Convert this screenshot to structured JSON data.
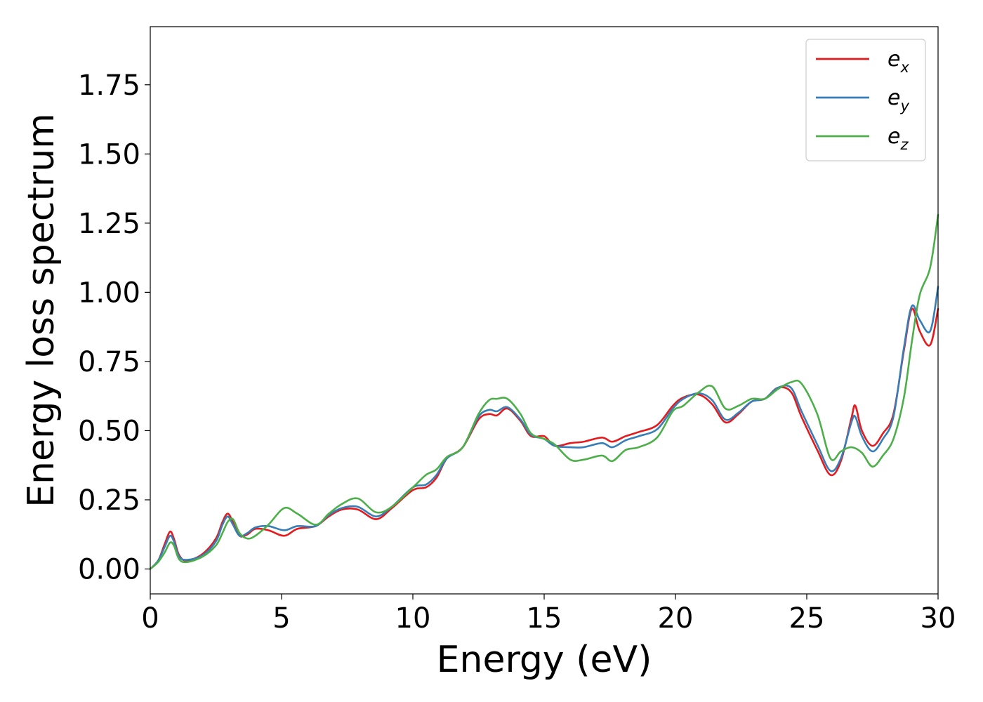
{
  "chart_data": {
    "type": "line",
    "xlabel": "Energy (eV)",
    "ylabel": "Energy loss spectrum",
    "xlim": [
      0,
      30
    ],
    "ylim": [
      -0.09,
      1.96
    ],
    "x_ticks": [
      "0",
      "5",
      "10",
      "15",
      "20",
      "25",
      "30"
    ],
    "y_ticks": [
      "0.00",
      "0.25",
      "0.50",
      "0.75",
      "1.00",
      "1.25",
      "1.50",
      "1.75"
    ],
    "grid": false,
    "legend_position": "top-right",
    "series": [
      {
        "name": "e",
        "subscript": "x",
        "color": "#e41a1c",
        "points": [
          [
            0,
            0
          ],
          [
            0.3,
            0.03
          ],
          [
            0.55,
            0.09
          ],
          [
            0.75,
            0.135
          ],
          [
            0.9,
            0.11
          ],
          [
            1.1,
            0.05
          ],
          [
            1.4,
            0.03
          ],
          [
            2,
            0.055
          ],
          [
            2.5,
            0.11
          ],
          [
            2.75,
            0.17
          ],
          [
            2.95,
            0.2
          ],
          [
            3.15,
            0.17
          ],
          [
            3.4,
            0.12
          ],
          [
            3.7,
            0.125
          ],
          [
            4,
            0.145
          ],
          [
            4.5,
            0.14
          ],
          [
            5.1,
            0.12
          ],
          [
            5.6,
            0.145
          ],
          [
            6.3,
            0.155
          ],
          [
            6.8,
            0.19
          ],
          [
            7.3,
            0.215
          ],
          [
            7.9,
            0.215
          ],
          [
            8.6,
            0.18
          ],
          [
            9.2,
            0.22
          ],
          [
            10,
            0.285
          ],
          [
            10.5,
            0.295
          ],
          [
            10.9,
            0.33
          ],
          [
            11.3,
            0.4
          ],
          [
            11.9,
            0.44
          ],
          [
            12.5,
            0.54
          ],
          [
            12.9,
            0.56
          ],
          [
            13.2,
            0.555
          ],
          [
            13.6,
            0.58
          ],
          [
            14.1,
            0.535
          ],
          [
            14.5,
            0.48
          ],
          [
            15,
            0.48
          ],
          [
            15.4,
            0.445
          ],
          [
            16,
            0.455
          ],
          [
            16.5,
            0.46
          ],
          [
            17.2,
            0.475
          ],
          [
            17.6,
            0.46
          ],
          [
            18.1,
            0.48
          ],
          [
            18.6,
            0.495
          ],
          [
            19.3,
            0.52
          ],
          [
            19.9,
            0.59
          ],
          [
            20.3,
            0.62
          ],
          [
            20.9,
            0.63
          ],
          [
            21.4,
            0.595
          ],
          [
            21.9,
            0.53
          ],
          [
            22.4,
            0.56
          ],
          [
            22.9,
            0.605
          ],
          [
            23.4,
            0.615
          ],
          [
            23.9,
            0.655
          ],
          [
            24.4,
            0.64
          ],
          [
            24.8,
            0.55
          ],
          [
            25.4,
            0.43
          ],
          [
            25.9,
            0.34
          ],
          [
            26.3,
            0.39
          ],
          [
            26.7,
            0.545
          ],
          [
            26.85,
            0.59
          ],
          [
            27.1,
            0.5
          ],
          [
            27.5,
            0.445
          ],
          [
            27.9,
            0.49
          ],
          [
            28.3,
            0.56
          ],
          [
            28.7,
            0.79
          ],
          [
            29,
            0.94
          ],
          [
            29.3,
            0.86
          ],
          [
            29.7,
            0.81
          ],
          [
            30,
            0.94
          ]
        ]
      },
      {
        "name": "e",
        "subscript": "y",
        "color": "#377eb8",
        "points": [
          [
            0,
            0
          ],
          [
            0.3,
            0.03
          ],
          [
            0.55,
            0.08
          ],
          [
            0.75,
            0.12
          ],
          [
            0.9,
            0.1
          ],
          [
            1.1,
            0.045
          ],
          [
            1.4,
            0.033
          ],
          [
            2,
            0.05
          ],
          [
            2.5,
            0.1
          ],
          [
            2.75,
            0.16
          ],
          [
            2.95,
            0.19
          ],
          [
            3.15,
            0.16
          ],
          [
            3.4,
            0.12
          ],
          [
            3.7,
            0.13
          ],
          [
            4,
            0.15
          ],
          [
            4.5,
            0.155
          ],
          [
            5.1,
            0.14
          ],
          [
            5.6,
            0.155
          ],
          [
            6.3,
            0.155
          ],
          [
            6.8,
            0.195
          ],
          [
            7.3,
            0.22
          ],
          [
            7.9,
            0.225
          ],
          [
            8.6,
            0.19
          ],
          [
            9.2,
            0.225
          ],
          [
            10,
            0.295
          ],
          [
            10.5,
            0.305
          ],
          [
            10.9,
            0.34
          ],
          [
            11.3,
            0.4
          ],
          [
            11.9,
            0.44
          ],
          [
            12.5,
            0.55
          ],
          [
            12.9,
            0.575
          ],
          [
            13.2,
            0.57
          ],
          [
            13.6,
            0.585
          ],
          [
            14.1,
            0.54
          ],
          [
            14.5,
            0.485
          ],
          [
            15,
            0.47
          ],
          [
            15.4,
            0.445
          ],
          [
            16,
            0.44
          ],
          [
            16.5,
            0.44
          ],
          [
            17.2,
            0.455
          ],
          [
            17.6,
            0.44
          ],
          [
            18.1,
            0.465
          ],
          [
            18.6,
            0.48
          ],
          [
            19.3,
            0.505
          ],
          [
            19.9,
            0.58
          ],
          [
            20.3,
            0.615
          ],
          [
            20.9,
            0.635
          ],
          [
            21.4,
            0.61
          ],
          [
            21.9,
            0.54
          ],
          [
            22.4,
            0.565
          ],
          [
            22.9,
            0.605
          ],
          [
            23.4,
            0.615
          ],
          [
            23.9,
            0.655
          ],
          [
            24.4,
            0.655
          ],
          [
            24.8,
            0.57
          ],
          [
            25.4,
            0.45
          ],
          [
            25.9,
            0.355
          ],
          [
            26.3,
            0.4
          ],
          [
            26.7,
            0.53
          ],
          [
            26.85,
            0.55
          ],
          [
            27.1,
            0.48
          ],
          [
            27.5,
            0.425
          ],
          [
            27.9,
            0.47
          ],
          [
            28.3,
            0.55
          ],
          [
            28.7,
            0.8
          ],
          [
            29,
            0.95
          ],
          [
            29.3,
            0.9
          ],
          [
            29.7,
            0.86
          ],
          [
            30,
            1.02
          ]
        ]
      },
      {
        "name": "e",
        "subscript": "z",
        "color": "#4daf4a",
        "points": [
          [
            0,
            0
          ],
          [
            0.3,
            0.025
          ],
          [
            0.55,
            0.06
          ],
          [
            0.75,
            0.095
          ],
          [
            0.9,
            0.085
          ],
          [
            1.1,
            0.035
          ],
          [
            1.4,
            0.025
          ],
          [
            2,
            0.045
          ],
          [
            2.5,
            0.085
          ],
          [
            2.75,
            0.13
          ],
          [
            2.95,
            0.17
          ],
          [
            3.15,
            0.18
          ],
          [
            3.4,
            0.13
          ],
          [
            3.7,
            0.11
          ],
          [
            4,
            0.12
          ],
          [
            4.5,
            0.16
          ],
          [
            5.1,
            0.22
          ],
          [
            5.6,
            0.2
          ],
          [
            6.3,
            0.16
          ],
          [
            6.8,
            0.2
          ],
          [
            7.3,
            0.235
          ],
          [
            7.9,
            0.255
          ],
          [
            8.6,
            0.205
          ],
          [
            9.2,
            0.225
          ],
          [
            10,
            0.295
          ],
          [
            10.5,
            0.34
          ],
          [
            10.9,
            0.36
          ],
          [
            11.3,
            0.405
          ],
          [
            11.9,
            0.44
          ],
          [
            12.5,
            0.56
          ],
          [
            12.9,
            0.61
          ],
          [
            13.2,
            0.615
          ],
          [
            13.6,
            0.615
          ],
          [
            14.1,
            0.56
          ],
          [
            14.5,
            0.49
          ],
          [
            15,
            0.47
          ],
          [
            15.4,
            0.45
          ],
          [
            16,
            0.395
          ],
          [
            16.5,
            0.395
          ],
          [
            17.2,
            0.41
          ],
          [
            17.6,
            0.39
          ],
          [
            18.1,
            0.43
          ],
          [
            18.6,
            0.44
          ],
          [
            19.3,
            0.475
          ],
          [
            19.9,
            0.57
          ],
          [
            20.3,
            0.59
          ],
          [
            20.9,
            0.64
          ],
          [
            21.4,
            0.66
          ],
          [
            21.9,
            0.58
          ],
          [
            22.4,
            0.59
          ],
          [
            22.9,
            0.615
          ],
          [
            23.4,
            0.615
          ],
          [
            23.9,
            0.65
          ],
          [
            24.4,
            0.675
          ],
          [
            24.8,
            0.67
          ],
          [
            25.4,
            0.56
          ],
          [
            25.9,
            0.4
          ],
          [
            26.3,
            0.425
          ],
          [
            26.7,
            0.44
          ],
          [
            27.1,
            0.42
          ],
          [
            27.5,
            0.37
          ],
          [
            27.9,
            0.41
          ],
          [
            28.3,
            0.47
          ],
          [
            28.7,
            0.62
          ],
          [
            29,
            0.82
          ],
          [
            29.3,
            0.99
          ],
          [
            29.7,
            1.09
          ],
          [
            30,
            1.28
          ]
        ]
      }
    ]
  }
}
